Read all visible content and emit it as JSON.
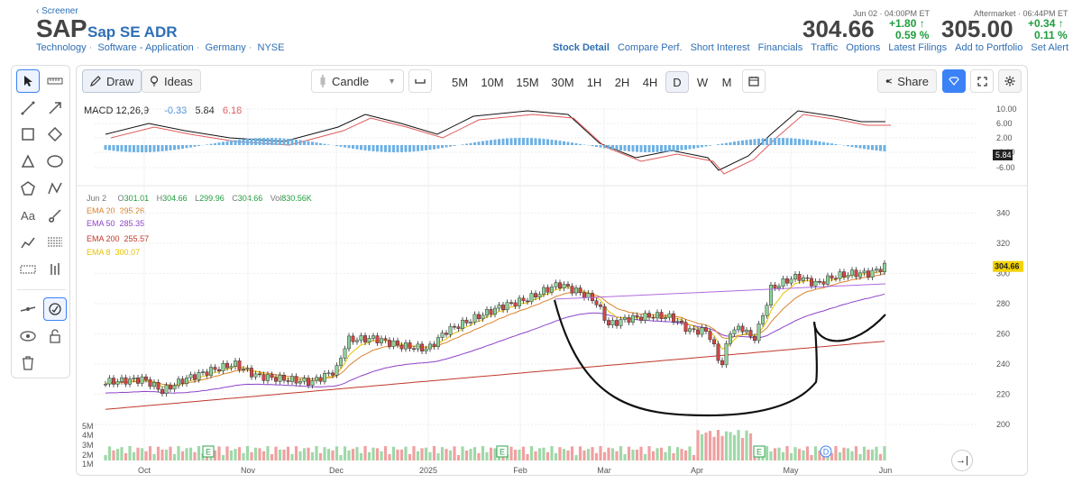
{
  "header": {
    "breadcrumb": "Screener",
    "ticker": "SAP",
    "company": "Sap SE ADR",
    "meta": [
      "Technology",
      "Software - Application",
      "Germany",
      "NYSE"
    ],
    "close_time": "Jun 02 · 04:00PM ET",
    "close_price": "304.66",
    "close_change": "+1.80",
    "close_change_pct": "0.59 %",
    "after_label": "Aftermarket · 06:44PM ET",
    "after_price": "305.00",
    "after_change": "+0.34",
    "after_change_pct": "0.11 %",
    "up_color": "#1f9d3d"
  },
  "nav": [
    "Stock Detail",
    "Compare Perf.",
    "Short Interest",
    "Financials",
    "Traffic",
    "Options",
    "Latest Filings",
    "Add to Portfolio",
    "Set Alert"
  ],
  "toolbar": {
    "draw": "Draw",
    "ideas": "Ideas",
    "chart_type": "Candle",
    "timeframes": [
      "5M",
      "10M",
      "15M",
      "30M",
      "1H",
      "2H",
      "4H",
      "D",
      "W",
      "M"
    ],
    "active_timeframe": "D",
    "share": "Share"
  },
  "macd": {
    "label": "MACD 12,26,9",
    "hist": "-0.33",
    "macd": "5.84",
    "signal": "6.18",
    "axis": [
      "10.00",
      "6.00",
      "2.00",
      "-2.00",
      "-6.00"
    ],
    "current": "5.84"
  },
  "ohlc": {
    "date": "Jun 2",
    "o_label": "O",
    "o": "301.01",
    "h_label": "H",
    "h": "304.66",
    "l_label": "L",
    "l": "299.96",
    "c_label": "C",
    "c": "304.66",
    "vol_label": "Vol",
    "vol": "830.56K"
  },
  "ema": [
    {
      "label": "EMA 20",
      "value": "295.26",
      "color": "#d9822b"
    },
    {
      "label": "EMA 50",
      "value": "285.35",
      "color": "#8e44c9"
    },
    {
      "label": "EMA 200",
      "value": "255.57",
      "color": "#c0392b"
    },
    {
      "label": "EMA 8",
      "value": "300.07",
      "color": "#e8c100"
    }
  ],
  "chart_data": {
    "type": "candlestick",
    "x_ticks": [
      "Oct",
      "Nov",
      "Dec",
      "2025",
      "Feb",
      "Mar",
      "Apr",
      "May",
      "Jun"
    ],
    "price_axis": [
      "340",
      "320",
      "300",
      "280",
      "260",
      "240",
      "220",
      "200"
    ],
    "volume_axis": [
      "5M",
      "4M",
      "3M",
      "2M",
      "1M"
    ],
    "current_price": "304.66",
    "events": [
      "E",
      "E",
      "E",
      "D"
    ]
  }
}
